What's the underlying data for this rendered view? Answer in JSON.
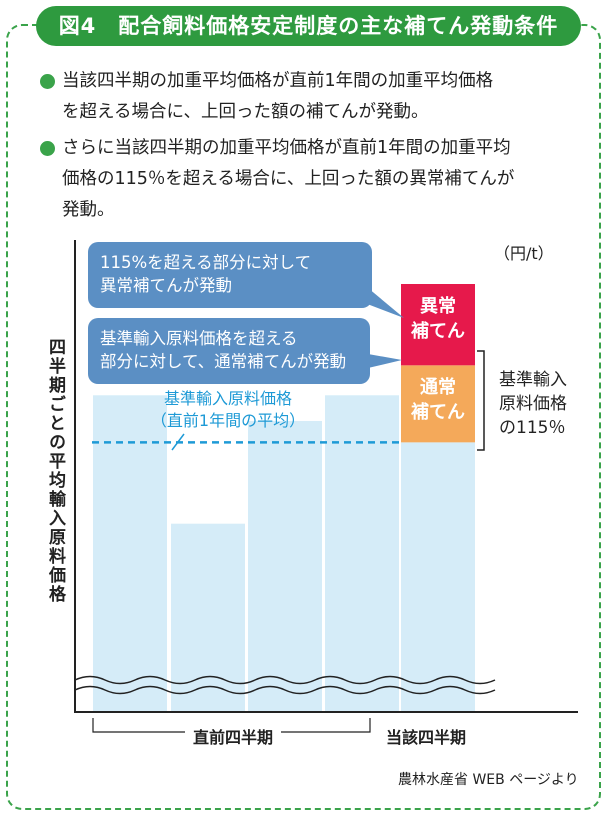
{
  "header": {
    "title": "図4　配合飼料価格安定制度の主な補てん発動条件"
  },
  "bullets": [
    {
      "line1": "当該四半期の加重平均価格が直前1年間の加重平均価格",
      "line2": "を超える場合に、上回った額の補てんが発動。"
    },
    {
      "line1": "さらに当該四半期の加重平均価格が直前1年間の加重平均",
      "line2": "価格の115％を超える場合に、上回った額の異常補てんが",
      "line3": "発動。"
    }
  ],
  "colors": {
    "title_bg": "#2e9a3f",
    "bullet_dot": "#3aa34a",
    "bar": "#d5ecf8",
    "callout": "#5b8fc4",
    "abnormal": "#e6194b",
    "normal": "#f4a95a",
    "baseline": "#1e9ad6"
  },
  "chart_data": {
    "type": "bar",
    "unit": "（円/t）",
    "ylabel": "四半期ごとの平均輸入原料価格",
    "categories": [
      "",
      "",
      "",
      "",
      ""
    ],
    "values": [
      0.74,
      0.44,
      0.68,
      0.74,
      1.0
    ],
    "baseline": 0.63,
    "stacked_last": {
      "normal_top": 0.81,
      "abnormal_top": 1.0
    },
    "group_labels": [
      "直前四半期",
      "当該四半期"
    ],
    "annotations": {
      "callout1": [
        "115%を超える部分に対して",
        "異常補てんが発動"
      ],
      "callout2": [
        "基準輸入原料価格を超える",
        "部分に対して、通常補てんが発動"
      ],
      "baseline_label": [
        "基準輸入原料価格",
        "（直前1年間の平均）"
      ],
      "abnormal_segment": [
        "異常",
        "補てん"
      ],
      "normal_segment": [
        "通常",
        "補てん"
      ],
      "brace_label": [
        "基準輸入",
        "原料価格",
        "の115％"
      ]
    }
  },
  "footer": {
    "source": "農林水産省 WEB ページより"
  }
}
